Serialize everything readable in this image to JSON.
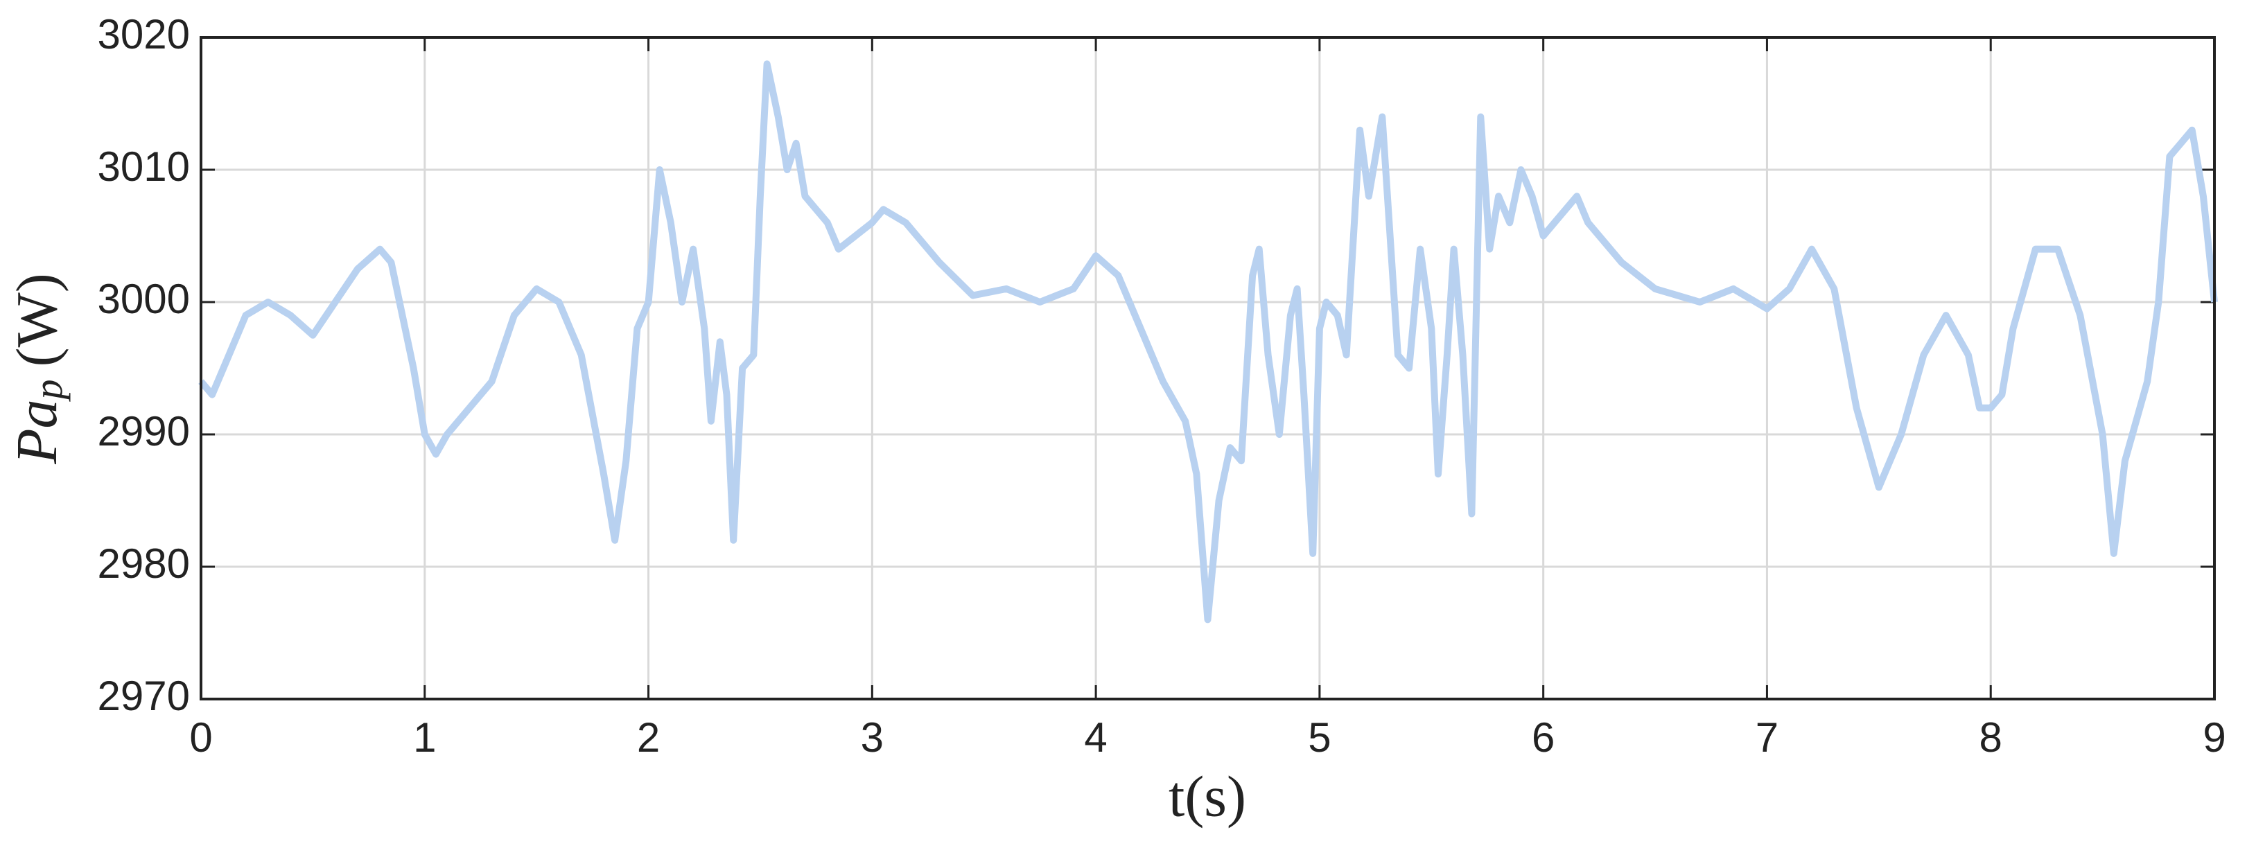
{
  "chart_data": {
    "type": "line",
    "xlabel": "t(s)",
    "ylabel": [
      "Pa",
      "p",
      "(W)"
    ],
    "x": [
      0,
      0.05,
      0.1,
      0.2,
      0.3,
      0.4,
      0.5,
      0.6,
      0.7,
      0.8,
      0.85,
      0.9,
      0.95,
      1.0,
      1.05,
      1.1,
      1.2,
      1.3,
      1.4,
      1.5,
      1.6,
      1.7,
      1.8,
      1.85,
      1.9,
      1.95,
      2.0,
      2.05,
      2.1,
      2.15,
      2.2,
      2.25,
      2.28,
      2.32,
      2.35,
      2.38,
      2.42,
      2.47,
      2.5,
      2.53,
      2.58,
      2.62,
      2.66,
      2.7,
      2.75,
      2.8,
      2.85,
      3.0,
      3.05,
      3.15,
      3.3,
      3.45,
      3.6,
      3.75,
      3.9,
      4.0,
      4.1,
      4.2,
      4.3,
      4.4,
      4.45,
      4.5,
      4.55,
      4.6,
      4.65,
      4.7,
      4.73,
      4.77,
      4.82,
      4.87,
      4.9,
      4.93,
      4.97,
      5.0,
      5.03,
      5.08,
      5.12,
      5.18,
      5.22,
      5.28,
      5.35,
      5.4,
      5.45,
      5.5,
      5.53,
      5.57,
      5.6,
      5.64,
      5.68,
      5.72,
      5.76,
      5.8,
      5.85,
      5.9,
      5.95,
      6.0,
      6.05,
      6.15,
      6.2,
      6.35,
      6.5,
      6.7,
      6.85,
      7.0,
      7.1,
      7.2,
      7.3,
      7.4,
      7.5,
      7.6,
      7.7,
      7.8,
      7.9,
      7.95,
      8.0,
      8.05,
      8.1,
      8.2,
      8.3,
      8.4,
      8.5,
      8.55,
      8.6,
      8.7,
      8.75,
      8.8,
      8.85,
      8.9,
      8.95,
      9.0
    ],
    "series": [
      {
        "color": "#b8d1f0",
        "values": [
          2994,
          2993,
          2995,
          2999,
          3000,
          2999,
          2997.5,
          3000,
          3002.5,
          3004,
          3003,
          2999,
          2995,
          2990,
          2988.5,
          2990,
          2992,
          2994,
          2999,
          3001,
          3000,
          2996,
          2987,
          2982,
          2988,
          2998,
          3000,
          3010,
          3006,
          3000,
          3004,
          2998,
          2991,
          2997,
          2993,
          2982,
          2995,
          2996,
          3008,
          3018,
          3014,
          3010,
          3012,
          3008,
          3007,
          3006,
          3004,
          3006,
          3007,
          3006,
          3003,
          3000.5,
          3001,
          3000,
          3001,
          3003.5,
          3002,
          2998,
          2994,
          2991,
          2987,
          2976,
          2985,
          2989,
          2988,
          3002,
          3004,
          2996,
          2990,
          2999,
          3001,
          2993,
          2981,
          2998,
          3000,
          2999,
          2996,
          3013,
          3008,
          3014,
          2996,
          2995,
          3004,
          2998,
          2987,
          2996,
          3004,
          2996,
          2984,
          3014,
          3004,
          3008,
          3006,
          3010,
          3008,
          3005,
          3006,
          3008,
          3006,
          3003,
          3001,
          3000,
          3001,
          2999.5,
          3001,
          3004,
          3001,
          2992,
          2986,
          2990,
          2996,
          2999,
          2996,
          2992,
          2992,
          2993,
          2998,
          3004,
          3004,
          2999,
          2990,
          2981,
          2988,
          2994,
          3000,
          3011,
          3012,
          3013,
          3008,
          3000
        ]
      }
    ],
    "xlim": [
      0,
      9
    ],
    "xticks": [
      0,
      1,
      2,
      3,
      4,
      5,
      6,
      7,
      8,
      9
    ],
    "ylim": [
      2970,
      3020
    ],
    "yticks": [
      2970,
      2980,
      2990,
      3000,
      3010,
      3020
    ],
    "grid": true
  }
}
